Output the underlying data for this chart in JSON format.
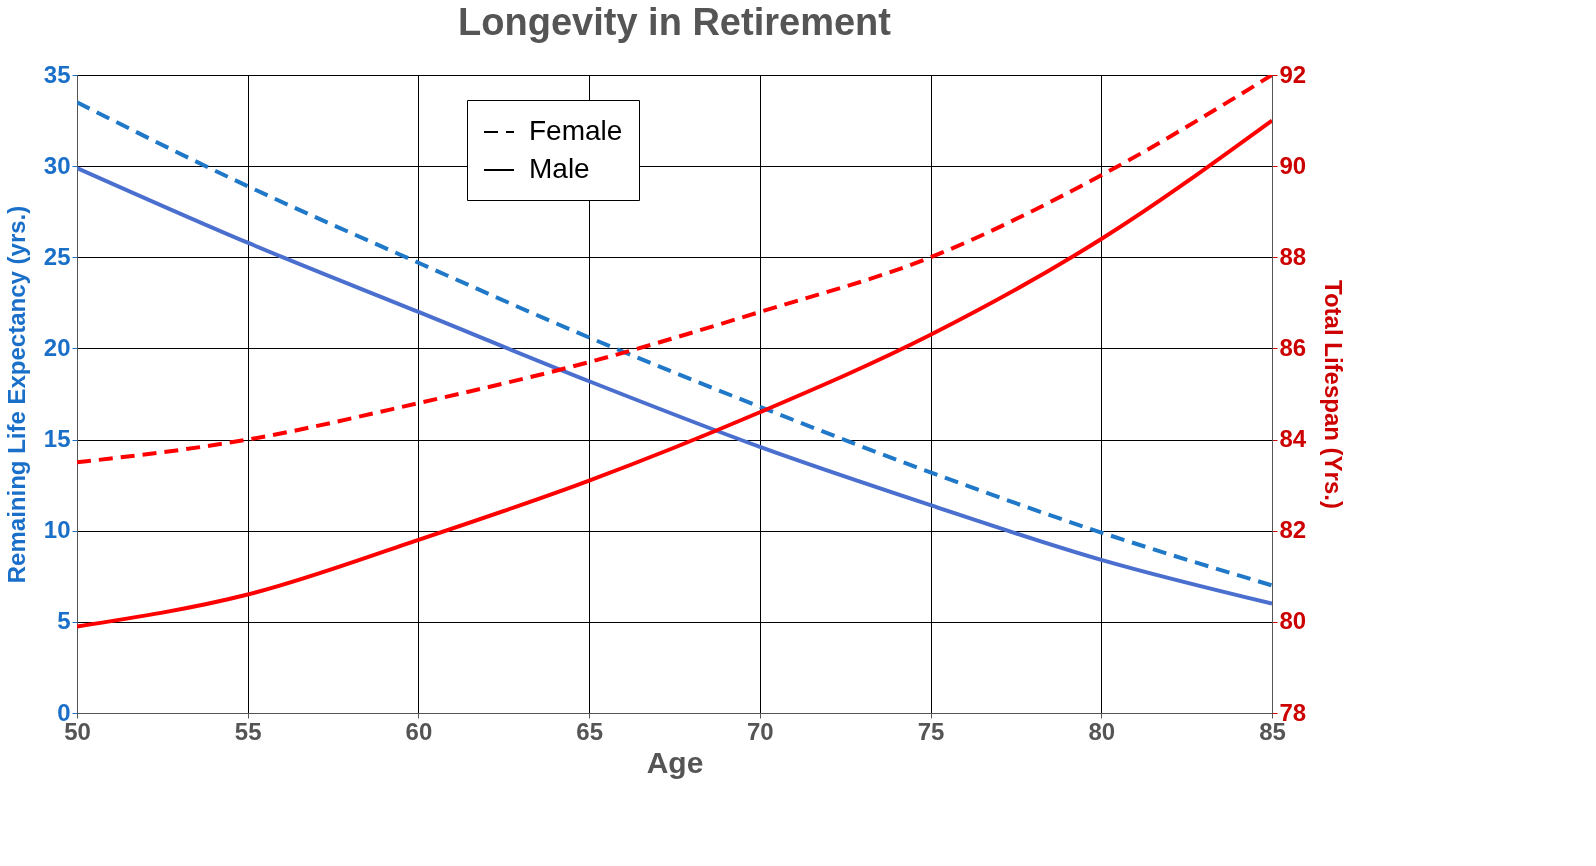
{
  "chart_data": {
    "type": "line",
    "title": "Longevity in Retirement",
    "xlabel": "Age",
    "ylabel": "Remaining Life Expectancy (yrs.)",
    "y2label": "Total Lifespan (Yrs.)",
    "annotations": [
      "Female",
      "Male"
    ],
    "x": [
      50,
      55,
      60,
      65,
      70,
      75,
      80,
      85
    ],
    "series": [
      {
        "color": "#1f78c8",
        "line_style": "dashed",
        "values": [
          33.5,
          28.9,
          24.7,
          20.6,
          16.8,
          13.2,
          9.9,
          7.0
        ]
      },
      {
        "color": "#4a6fcf",
        "line_style": "solid",
        "values": [
          29.9,
          25.8,
          22.0,
          18.2,
          14.6,
          11.4,
          8.4,
          6.0
        ]
      },
      {
        "color": "#ff0000",
        "line_style": "dashed",
        "axis": "y2",
        "values": [
          83.5,
          84.0,
          84.8,
          85.7,
          86.8,
          88.0,
          89.8,
          92.0
        ]
      },
      {
        "color": "#ff0000",
        "line_style": "solid",
        "axis": "y2",
        "values": [
          79.9,
          80.6,
          81.8,
          83.1,
          84.6,
          86.3,
          88.4,
          91.0
        ]
      }
    ],
    "xlim": [
      50,
      85
    ],
    "xticks": [
      50,
      55,
      60,
      65,
      70,
      75,
      80,
      85
    ],
    "ylim": [
      0,
      35
    ],
    "yticks": [
      0,
      5,
      10,
      15,
      20,
      25,
      30,
      35
    ],
    "y2lim": [
      78,
      92
    ],
    "y2ticks": [
      78,
      80,
      82,
      84,
      86,
      88,
      90,
      92
    ],
    "grid": true,
    "marker": "none"
  }
}
